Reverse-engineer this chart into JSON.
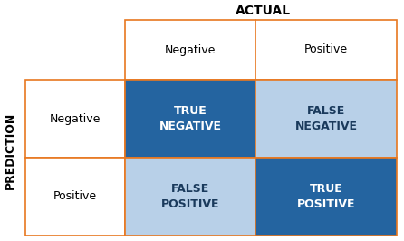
{
  "title_top": "ACTUAL",
  "title_left": "PREDICTION",
  "col_labels": [
    "Negative",
    "Positive"
  ],
  "row_labels": [
    "Negative",
    "Positive"
  ],
  "cell_texts": [
    [
      "TRUE\nNEGATIVE",
      "FALSE\nNEGATIVE"
    ],
    [
      "FALSE\nPOSITIVE",
      "TRUE\nPOSITIVE"
    ]
  ],
  "cell_colors": [
    [
      "#2464a0",
      "#b8d0e8"
    ],
    [
      "#b8d0e8",
      "#2464a0"
    ]
  ],
  "cell_text_colors": [
    [
      "white",
      "#1a3a5c"
    ],
    [
      "#1a3a5c",
      "white"
    ]
  ],
  "border_color": "#e87820",
  "background_color": "white",
  "fig_width": 4.46,
  "fig_height": 2.66,
  "dpi": 100
}
